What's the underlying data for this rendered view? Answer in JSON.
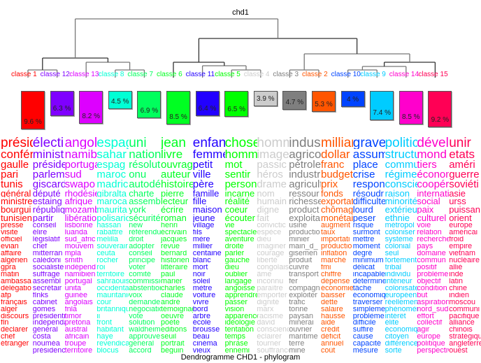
{
  "title": "chd1",
  "subtitle": "Dendrogramme CHD1 - phylogram",
  "classes": [
    {
      "label": "classe 1",
      "pct": "9.6 %",
      "value": 9.6,
      "color": "#FF0000",
      "words": [
        "présid",
        "confér",
        "gaulle",
        "pari",
        "tunis",
        "général",
        "ministre",
        "bourgui",
        "tunisien",
        "presse",
        "visite",
        "officiel",
        "evian",
        "affaire",
        "algérien",
        "gpra",
        "matin",
        "ambassa",
        "délégatio",
        "afp",
        "français",
        "alger",
        "discours",
        "fln",
        "déclarer",
        "chef",
        "étranger"
      ]
    },
    {
      "label": "classe 12",
      "pct": "6.3 %",
      "value": 6.3,
      "color": "#7F00FF",
      "words": [
        "électi",
        "minist",
        "préside",
        "parleme",
        "giscard",
        "député",
        "estaing",
        "républiq",
        "partir",
        "conseil",
        "élire",
        "législatif",
        "chef",
        "mitterran",
        "calédoni",
        "socialiste",
        "suffrage",
        "assembl",
        "secrétair",
        "flnks",
        "cabinet",
        "gomes",
        "présidenti",
        "indépenda",
        "général",
        "costa",
        "nouméa",
        "présidenc"
      ]
    },
    {
      "label": "classe 13",
      "pct": "8.2 %",
      "value": 8.2,
      "color": "#DD00FF",
      "words": [
        "angol",
        "namibi",
        "portuga",
        "sud",
        "swapo",
        "rhodésie",
        "afrique",
        "mozamb",
        "libération",
        "lisbonne",
        "luanda",
        "sud_afric",
        "mouvem",
        "mpla",
        "smith",
        "indépend",
        "namibien",
        "portugal",
        "unita",
        "guinée",
        "angolais",
        "fnla",
        "timor",
        "pretoria",
        "austral",
        "africain",
        "troupe",
        "territoire",
        "bissau"
      ]
    },
    {
      "label": "classe 8",
      "pct": "4.5 %",
      "value": 4.5,
      "color": "#00FFD5",
      "words": [
        "espag",
        "sahar",
        "espag",
        "maroc",
        "madric",
        "gibralta",
        "maroca",
        "maurita",
        "polisario",
        "hassan",
        "rabattre",
        "melilla",
        "souverair",
        "ceuta",
        "rocher",
        "roi",
        "territoire",
        "sahraouis",
        "occidental",
        "mauritanie",
        "cour",
        "britanniqu",
        "ii",
        "front",
        "habitant",
        "haye",
        "revendicat",
        "blocus",
        "saharien"
      ]
    },
    {
      "label": "classe 7",
      "pct": "6.9 %",
      "value": 6.9,
      "color": "#00FF5D",
      "words": [
        "uni",
        "nation",
        "résolut",
        "onu",
        "autodéte",
        "charte",
        "assemblé",
        "york",
        "sécurité",
        "new",
        "référendu",
        "droit",
        "adopter",
        "conseil",
        "principe",
        "voter",
        "comité",
        "commissic",
        "abstention",
        "voix",
        "demander",
        "négociatio",
        "vote",
        "solution",
        "waldheim",
        "approuver",
        "général",
        "accord",
        "recomman",
        "décolonisa",
        "application"
      ]
    },
    {
      "label": "classe 6",
      "pct": "8.5 %",
      "value": 8.5,
      "color": "#00FF22",
      "words": [
        "jean",
        "livre",
        "ouvrage",
        "auteur",
        "histoire",
        "pierre",
        "lecteur",
        "écrire",
        "roman",
        "henri",
        "écrivain",
        "jacques",
        "revue",
        "bernard",
        "historien",
        "littéraire",
        "paul",
        "marier",
        "charles",
        "claude",
        "andré",
        "témoignag",
        "oeuvre",
        "poète",
        "editions",
        "seuil",
        "portrait",
        "béguin",
        "étude",
        "critique",
        "gallimard"
      ]
    },
    {
      "label": "classe 11",
      "pct": "6.4 %",
      "value": 6.4,
      "color": "#2200FF",
      "words": [
        "enfan",
        "femme",
        "petit",
        "ville",
        "père",
        "famille",
        "fille",
        "maison",
        "jeune",
        "village",
        "fils",
        "mère",
        "millier",
        "centaine",
        "blanc",
        "mort",
        "noir",
        "soleil",
        "mètre",
        "voiture",
        "vivre",
        "bord",
        "arbre",
        "école",
        "brousse",
        "beau",
        "cinéma",
        "vieux",
        "tableau"
      ]
    },
    {
      "label": "classe 5",
      "pct": "6.5 %",
      "value": 6.5,
      "color": "#00FF00",
      "words": [
        "chose",
        "homm",
        "mot",
        "sentir",
        "person",
        "incarne",
        "réalité",
        "coeur",
        "écouter",
        "vie",
        "spectacle",
        "aventure",
        "droite",
        "parler",
        "gauche",
        "dieu",
        "oublier",
        "langage",
        "angoisse",
        "apprendre",
        "passer",
        "vision",
        "apparence",
        "idéologie",
        "tentation",
        "temps",
        "phrase",
        "ennemi"
      ]
    },
    {
      "label": "classe 4",
      "pct": "3.9 %",
      "value": 3.9,
      "color": "#CCCCCC",
      "words": [
        "homm",
        "image",
        "passic",
        "héros",
        "drame",
        "nom",
        "humain",
        "digne",
        "fait",
        "convictic",
        "espèce",
        "dieu",
        "imaginer",
        "courage",
        "liberté",
        "congolais",
        "âme",
        "inconnu",
        "paraître",
        "emporter",
        "dignité",
        "marx",
        "racisme",
        "david",
        "conscienc",
        "éclairer",
        "tourner",
        "souffrance"
      ]
    },
    {
      "label": "classe 3",
      "pct": "4.7 %",
      "value": 4.7,
      "color": "#7F7F7F",
      "words": [
        "indus",
        "agrico",
        "pétrole",
        "industri",
        "agricult",
        "ressour",
        "richesse",
        "product",
        "exploita",
        "usine",
        "productio",
        "minier",
        "main_d_",
        "gisemen",
        "produit",
        "cuivre",
        "transport",
        "fer",
        "compagn",
        "exploiter",
        "trafic",
        "tonne",
        "paysan",
        "minerai",
        "ouvrier",
        "maritime",
        "terre",
        "mine"
      ]
    },
    {
      "label": "classe 2",
      "pct": "5.3 %",
      "value": 5.3,
      "color": "#FF5500",
      "words": [
        "milliar",
        "dollar",
        "franc",
        "budget",
        "prix",
        "fonds",
        "exportat",
        "chômage",
        "monétair",
        "augment",
        "taux",
        "importati",
        "productio",
        "inflation",
        "marché",
        "fmi",
        "chiffre",
        "dépense",
        "économie",
        "baisser",
        "dette",
        "salaire",
        "hausse",
        "aide",
        "crédit",
        "déficit",
        "annuel",
        "coût",
        "banque"
      ]
    },
    {
      "label": "classe 10",
      "pct": "4 %",
      "value": 4.0,
      "color": "#0044FF",
      "words": [
        "grave",
        "assum",
        "place",
        "crise",
        "respon",
        "résoudr",
        "difficulte",
        "lourd",
        "peser",
        "risque",
        "surmont",
        "mettre",
        "moment",
        "degré",
        "minimum",
        "délicat",
        "incapable",
        "détermine",
        "tâche",
        "économiq",
        "traverser",
        "simpleme",
        "problème",
        "difficile",
        "suffire",
        "cause",
        "capacité",
        "mesure",
        "immense"
      ]
    },
    {
      "label": "classe 9",
      "pct": "7.4 %",
      "value": 7.4,
      "color": "#00CCFF",
      "words": [
        "politic",
        "structur",
        "commur",
        "régime",
        "conscien",
        "raison",
        "minorité",
        "extérieur",
        "ethnie",
        "métropol",
        "coloniser",
        "système",
        "colonial",
        "seul",
        "fortement",
        "tribal",
        "individu",
        "intérieur",
        "colonisate",
        "européen",
        "réellemen",
        "phénomèn",
        "intérêt",
        "élite",
        "économiq",
        "citoyen",
        "différence",
        "sorte",
        "attacheme",
        "élément"
      ]
    },
    {
      "label": "classe 14",
      "pct": "8.5 %",
      "value": 8.5,
      "color": "#FF00CC",
      "words": [
        "dével",
        "mond",
        "tiers",
        "économ",
        "coopéra",
        "internatic",
        "social",
        "paix",
        "culturel",
        "voie",
        "relation",
        "recherche",
        "pays",
        "domaine",
        "commun",
        "positif",
        "problème",
        "objectif",
        "condition",
        "but",
        "aspiration",
        "nord_sud",
        "effort",
        "collectif",
        "agir",
        "europe",
        "politique",
        "perspectiv",
        "amélioratic",
        "progrès",
        "environner"
      ]
    },
    {
      "label": "classe 15",
      "pct": "9.2 %",
      "value": 9.2,
      "color": "#FF0055",
      "words": [
        "unir",
        "etats",
        "améri",
        "guerre",
        "soviéti",
        "asie",
        "urss",
        "puissan",
        "orient",
        "europe",
        "américai",
        "froid",
        "empire",
        "vietnam",
        "nucléaire",
        "allié",
        "inde",
        "latin",
        "chine",
        "indien",
        "moscou",
        "communi",
        "pacifique",
        "alliance",
        "chinois",
        "stratégiqu",
        "angleterre",
        "ouest"
      ]
    }
  ]
}
